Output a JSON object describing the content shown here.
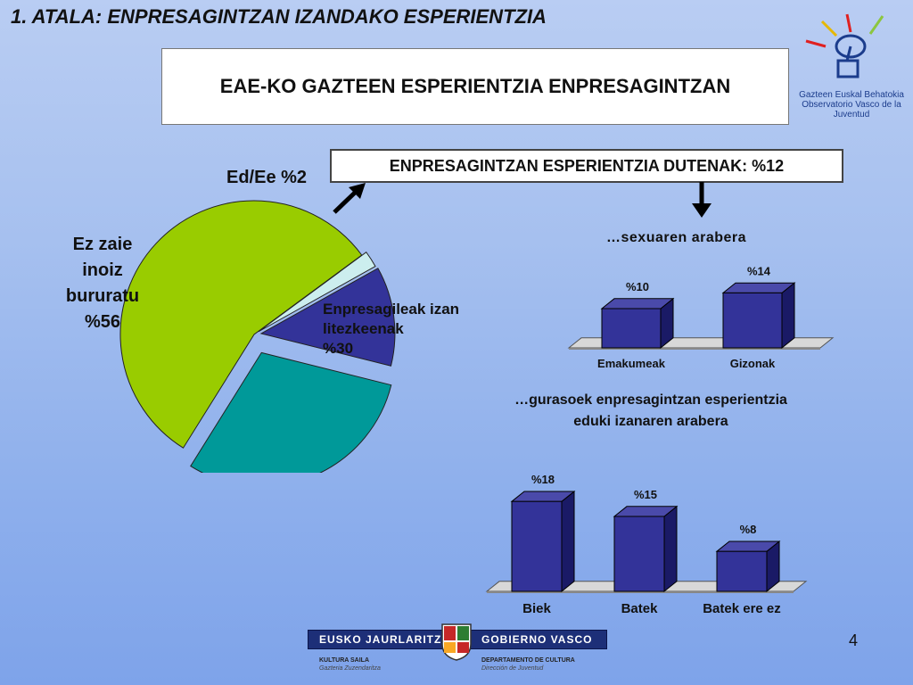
{
  "slide": {
    "section_title": "1. ATALA: ENPRESAGINTZAN IZANDAKO ESPERIENTZIA",
    "main_title": "EAE-KO GAZTEEN ESPERIENTZIA ENPRESAGINTZAN",
    "page_number": "4"
  },
  "logo": {
    "line1": "Gazteen Euskal Behatokia",
    "line2": "Observatorio Vasco de la Juventud"
  },
  "footer": {
    "left_name": "EUSKO JAURLARITZA",
    "right_name": "GOBIERNO VASCO",
    "left_dept": "KULTURA SAILA",
    "left_sub": "Gazteria Zuzendaritza",
    "right_dept": "DEPARTAMENTO DE CULTURA",
    "right_sub": "Dirección de Juventud"
  },
  "colors": {
    "green": "#99cc00",
    "teal": "#009999",
    "navy": "#333399",
    "light": "#cceeee"
  },
  "chart_data": [
    {
      "type": "pie",
      "slices": [
        {
          "label_lines": [
            "Ez zaie",
            "inoiz",
            "bururatu",
            "%56"
          ],
          "value": 56,
          "color": "#99cc00"
        },
        {
          "label_lines": [
            "Ed/Ee %2"
          ],
          "value": 2,
          "color": "#cceeee"
        },
        {
          "label_lines": [],
          "value": 12,
          "color": "#333399"
        },
        {
          "label_lines": [
            "Enpresagileak izan",
            "litezkeenak",
            "%30"
          ],
          "value": 30,
          "color": "#009999"
        }
      ],
      "callout": "ENPRESAGINTZAN ESPERIENTZIA DUTENAK: %12"
    },
    {
      "type": "bar",
      "title": "…sexuaren arabera",
      "categories": [
        "Emakumeak",
        "Gizonak"
      ],
      "values": [
        10,
        14
      ],
      "value_labels": [
        "%10",
        "%14"
      ],
      "ylim": [
        0,
        16
      ]
    },
    {
      "type": "bar",
      "title_lines": [
        "…gurasoek enpresagintzan esperientzia",
        "eduki izanaren arabera"
      ],
      "categories": [
        "Biek",
        "Batek",
        "Batek ere ez"
      ],
      "values": [
        18,
        15,
        8
      ],
      "value_labels": [
        "%18",
        "%15",
        "%8"
      ],
      "ylim": [
        0,
        20
      ]
    }
  ]
}
